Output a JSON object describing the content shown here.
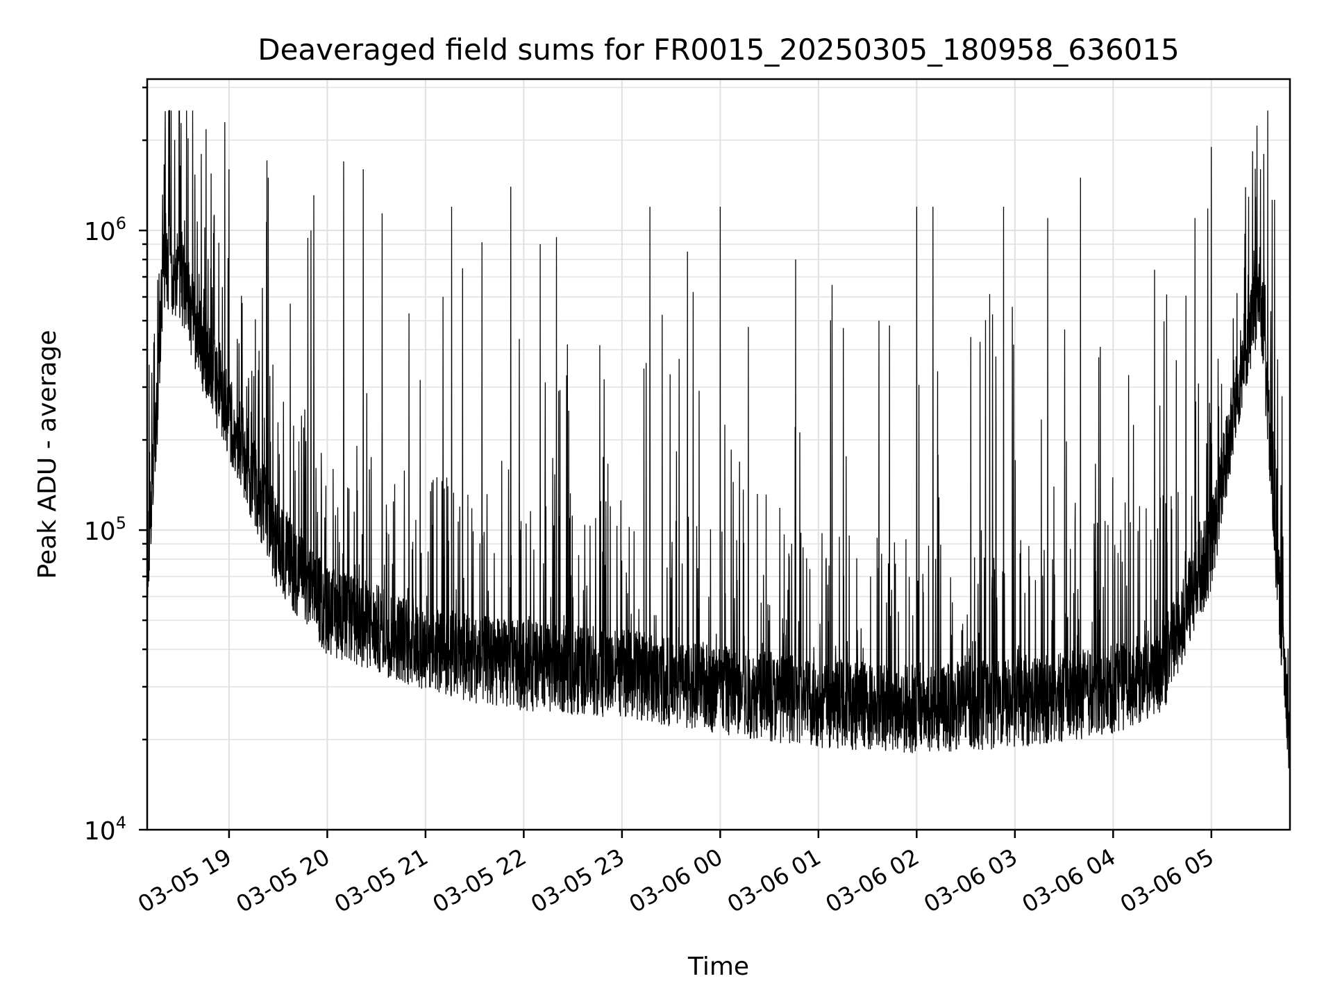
{
  "chart_data": {
    "type": "line",
    "title": "Deaveraged field sums for FR0015_20250305_180958_636015",
    "xlabel": "Time",
    "ylabel": "Peak ADU - average",
    "yscale": "log",
    "ylim": [
      10000,
      3200000
    ],
    "xlim": [
      "2025-03-05 18:10",
      "2025-03-06 05:48"
    ],
    "grid": true,
    "color": "#000000",
    "x_ticks": [
      {
        "t": "2025-03-05 19:00",
        "label": "03-05 19"
      },
      {
        "t": "2025-03-05 20:00",
        "label": "03-05 20"
      },
      {
        "t": "2025-03-05 21:00",
        "label": "03-05 21"
      },
      {
        "t": "2025-03-05 22:00",
        "label": "03-05 22"
      },
      {
        "t": "2025-03-05 23:00",
        "label": "03-05 23"
      },
      {
        "t": "2025-03-06 00:00",
        "label": "03-06 00"
      },
      {
        "t": "2025-03-06 01:00",
        "label": "03-06 01"
      },
      {
        "t": "2025-03-06 02:00",
        "label": "03-06 02"
      },
      {
        "t": "2025-03-06 03:00",
        "label": "03-06 03"
      },
      {
        "t": "2025-03-06 04:00",
        "label": "03-06 04"
      },
      {
        "t": "2025-03-06 05:00",
        "label": "03-06 05"
      }
    ],
    "y_ticks": [
      {
        "value": 10000,
        "base": "10",
        "exp": "4"
      },
      {
        "value": 100000,
        "base": "10",
        "exp": "5"
      },
      {
        "value": 1000000,
        "base": "10",
        "exp": "6"
      }
    ],
    "envelope": {
      "x": [
        "2025-03-05 18:10",
        "2025-03-05 18:15",
        "2025-03-05 18:20",
        "2025-03-05 18:30",
        "2025-03-05 18:45",
        "2025-03-05 19:00",
        "2025-03-05 19:30",
        "2025-03-05 20:00",
        "2025-03-05 20:30",
        "2025-03-05 21:00",
        "2025-03-05 21:30",
        "2025-03-05 22:00",
        "2025-03-05 23:00",
        "2025-03-06 00:00",
        "2025-03-06 01:00",
        "2025-03-06 02:00",
        "2025-03-06 03:00",
        "2025-03-06 04:00",
        "2025-03-06 04:30",
        "2025-03-06 05:00",
        "2025-03-06 05:20",
        "2025-03-06 05:30",
        "2025-03-06 05:40",
        "2025-03-06 05:48"
      ],
      "baseline": [
        80000,
        200000,
        800000,
        700000,
        400000,
        250000,
        90000,
        55000,
        48000,
        42000,
        38000,
        36000,
        34000,
        30000,
        27000,
        26000,
        27000,
        30000,
        35000,
        90000,
        400000,
        650000,
        80000,
        20000
      ]
    },
    "spikes": [
      {
        "t": "2025-03-05 18:21",
        "value": 2500000
      },
      {
        "t": "2025-03-05 18:43",
        "value": 1800000
      },
      {
        "t": "2025-03-05 19:00",
        "value": 1600000
      },
      {
        "t": "2025-03-05 19:24",
        "value": 1500000
      },
      {
        "t": "2025-03-05 19:50",
        "value": 1000000
      },
      {
        "t": "2025-03-05 20:10",
        "value": 1700000
      },
      {
        "t": "2025-03-05 20:22",
        "value": 1600000
      },
      {
        "t": "2025-03-05 21:16",
        "value": 1200000
      },
      {
        "t": "2025-03-05 21:52",
        "value": 1400000
      },
      {
        "t": "2025-03-05 22:10",
        "value": 900000
      },
      {
        "t": "2025-03-05 22:20",
        "value": 950000
      },
      {
        "t": "2025-03-05 23:17",
        "value": 1200000
      },
      {
        "t": "2025-03-05 23:40",
        "value": 850000
      },
      {
        "t": "2025-03-06 00:00",
        "value": 1200000
      },
      {
        "t": "2025-03-06 00:46",
        "value": 800000
      },
      {
        "t": "2025-03-06 01:37",
        "value": 500000
      },
      {
        "t": "2025-03-06 02:00",
        "value": 1200000
      },
      {
        "t": "2025-03-06 02:10",
        "value": 1200000
      },
      {
        "t": "2025-03-06 02:53",
        "value": 1200000
      },
      {
        "t": "2025-03-06 03:20",
        "value": 1100000
      },
      {
        "t": "2025-03-06 03:40",
        "value": 1500000
      },
      {
        "t": "2025-03-06 04:50",
        "value": 1100000
      },
      {
        "t": "2025-03-06 05:00",
        "value": 1900000
      },
      {
        "t": "2025-03-06 05:32",
        "value": 1800000
      }
    ]
  }
}
